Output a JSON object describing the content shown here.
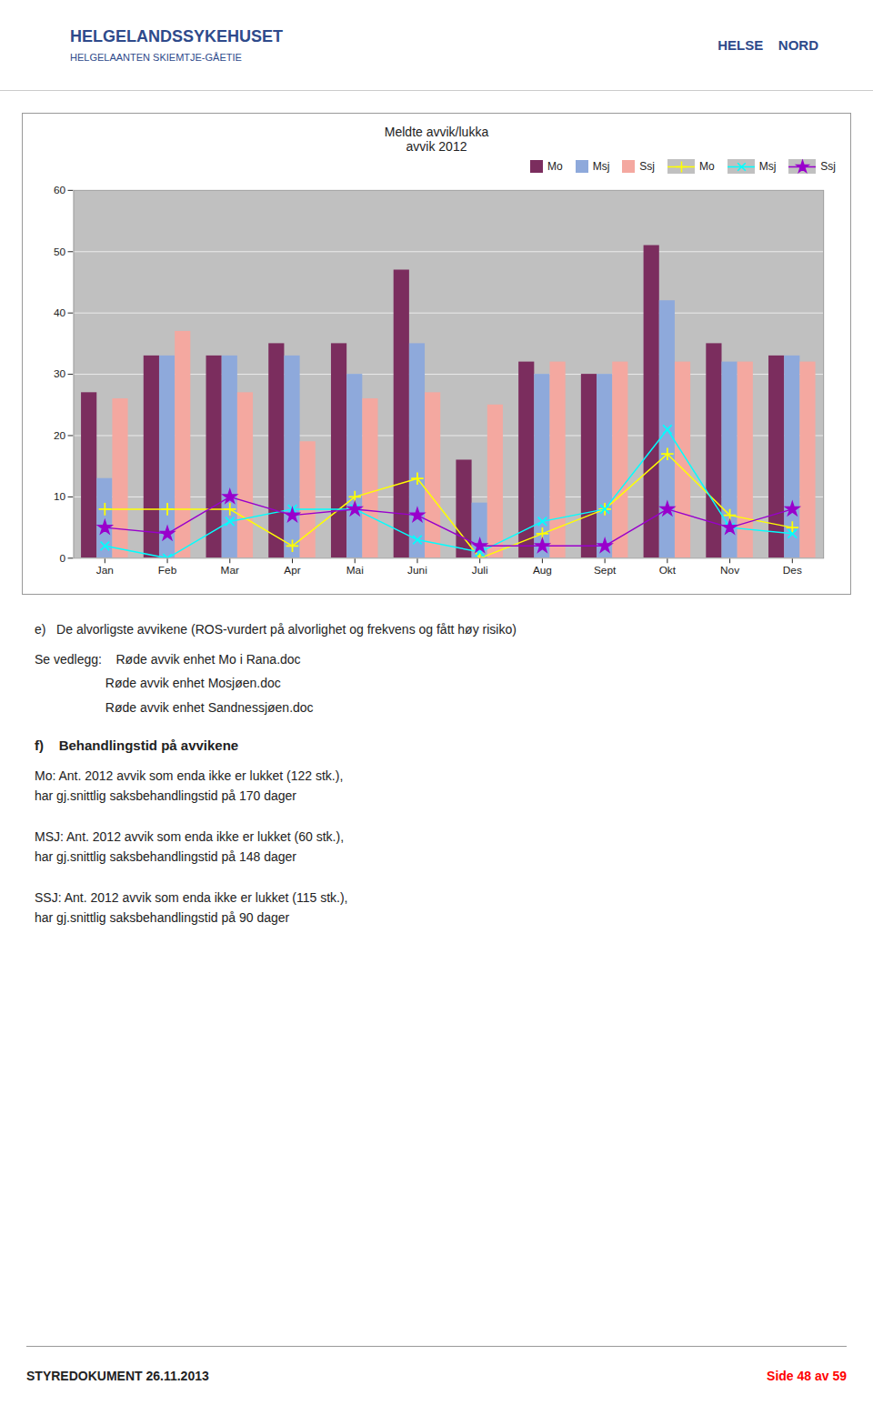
{
  "header": [
    {
      "text": "HELGELANDSSYKEHUSET",
      "color": "#2E4A8B"
    },
    {
      "text": "HELGELAANTEN SKIEMTJE-GÅETIE",
      "color": "#2E4A8B"
    },
    {
      "text": "HELSE    NORD",
      "color": "#2E4A8B"
    }
  ],
  "chart_data": {
    "type": "bar",
    "title": "Meldte avvik/lukka\navvik 2012",
    "categories": [
      "Jan",
      "Feb",
      "Mar",
      "Apr",
      "Mai",
      "Juni",
      "Juli",
      "Aug",
      "Sept",
      "Okt",
      "Nov",
      "Des"
    ],
    "series": [
      {
        "name": "Mo",
        "type": "bar",
        "color": "#7B2D5E",
        "values": [
          27,
          33,
          33,
          35,
          35,
          47,
          16,
          32,
          30,
          51,
          35,
          33
        ]
      },
      {
        "name": "Msj",
        "type": "bar",
        "color": "#8EA9DB",
        "values": [
          13,
          33,
          33,
          33,
          30,
          35,
          9,
          30,
          30,
          42,
          32,
          33
        ]
      },
      {
        "name": "Ssj",
        "type": "bar",
        "color": "#F4A8A0",
        "values": [
          26,
          37,
          27,
          19,
          26,
          27,
          25,
          32,
          32,
          32,
          32,
          32
        ]
      },
      {
        "name": "Mo",
        "type": "line",
        "color": "#FFFF00",
        "marker": "plus",
        "values": [
          8,
          8,
          8,
          2,
          10,
          13,
          0,
          4,
          8,
          17,
          7,
          5
        ]
      },
      {
        "name": "Msj",
        "type": "line",
        "color": "#00FFFF",
        "marker": "x",
        "values": [
          2,
          0,
          6,
          8,
          8,
          3,
          1,
          6,
          8,
          21,
          5,
          4
        ]
      },
      {
        "name": "Ssj",
        "type": "line",
        "color": "#9900CC",
        "marker": "star",
        "values": [
          5,
          4,
          10,
          7,
          8,
          7,
          2,
          2,
          2,
          8,
          5,
          8
        ]
      }
    ],
    "ylim": [
      0,
      60
    ],
    "yticks": [
      0,
      10,
      20,
      30,
      40,
      50,
      60
    ],
    "grid": true,
    "legend": "upper right"
  },
  "sections": [
    {
      "title": "e)   De alvorligste avvikene (ROS-vurdert på alvorlighet og frekvens og fått høy risiko)",
      "lines": [
        "Se vedlegg:    Røde avvik enhet Mo i Rana.doc",
        "                    Røde avvik enhet Mosjøen.doc",
        "                    Røde avvik enhet Sandnessjøen.doc"
      ]
    },
    {
      "title": "f)    Behandlingstid på avvikene",
      "lines": [
        "Mo: Ant. 2012 avvik som enda ikke er lukket (122 stk.),\nhar gj.snittlig saksbehandlingstid på 170 dager",
        "MSJ: Ant. 2012 avvik som enda ikke er lukket (60 stk.),\nhar gj.snittlig saksbehandlingstid på 148 dager",
        "SSJ: Ant. 2012 avvik som enda ikke er lukket (115 stk.),\nhar gj.snittlig saksbehandlingstid på 90 dager"
      ]
    }
  ],
  "footer": [
    {
      "text": "STYREDOKUMENT 26.11.2013"
    },
    {
      "text": "Side 48 av 59",
      "color": "red"
    }
  ]
}
